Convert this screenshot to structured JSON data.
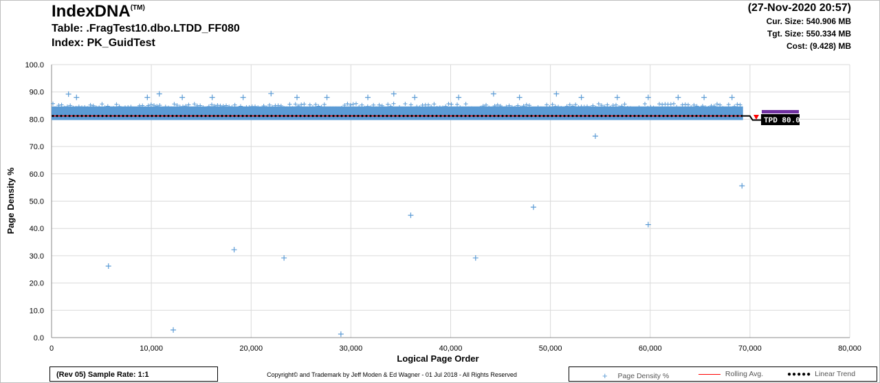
{
  "header": {
    "brand": "IndexDNA",
    "brand_mark": "(TM)",
    "table_line": "Table: .FragTest10.dbo.LTDD_FF080",
    "index_line": "Index: PK_GuidTest",
    "timestamp": "(27-Nov-2020 20:57)",
    "cur_size": "Cur. Size: 540.906  MB",
    "tgt_size": "Tgt. Size: 550.334  MB",
    "cost": "Cost: (9.428)  MB"
  },
  "footer": {
    "rev_text": "(Rev 05) Sample Rate: 1:1",
    "copyright": "Copyright© and Trademark by Jeff Moden & Ed Wagner - 01 Jul 2018 - All Rights Reserved"
  },
  "legend": {
    "page_density": "Page Density %",
    "rolling_avg": "Rolling Avg.",
    "linear_trend": "Linear Trend"
  },
  "tpd_label": "TPD 80.0",
  "colors": {
    "scatter": "#5b9bd5",
    "rolling": "#ff0000",
    "trend": "#000000",
    "tpd_bar": "#7030a0",
    "grid": "#d9d9d9"
  },
  "chart_data": {
    "type": "scatter",
    "xlabel": "Logical Page Order",
    "ylabel": "Page Density %",
    "xlim": [
      0,
      80000
    ],
    "ylim": [
      0,
      100
    ],
    "x_ticks": [
      "0",
      "10,000",
      "20,000",
      "30,000",
      "40,000",
      "50,000",
      "60,000",
      "70,000",
      "80,000"
    ],
    "y_ticks": [
      "0.0",
      "10.0",
      "20.0",
      "30.0",
      "40.0",
      "50.0",
      "60.0",
      "70.0",
      "80.0",
      "90.0",
      "100.0"
    ],
    "grid": true,
    "legend_position": "bottom-right",
    "series": [
      {
        "name": "Page Density %",
        "dense_band": {
          "x_range": [
            0,
            69300
          ],
          "y_range": [
            79.7,
            86.2
          ]
        },
        "high_points": [
          [
            1700,
            89.2
          ],
          [
            10800,
            89.3
          ],
          [
            22000,
            89.4
          ],
          [
            34300,
            89.3
          ],
          [
            44300,
            89.3
          ],
          [
            50600,
            89.3
          ],
          [
            2500,
            88.0
          ],
          [
            9600,
            88.0
          ],
          [
            13100,
            88.0
          ],
          [
            16100,
            88.0
          ],
          [
            19200,
            88.0
          ],
          [
            24600,
            88.0
          ],
          [
            27600,
            88.0
          ],
          [
            31700,
            88.0
          ],
          [
            36400,
            88.0
          ],
          [
            40800,
            88.0
          ],
          [
            46900,
            88.0
          ],
          [
            53100,
            88.0
          ],
          [
            56700,
            88.0
          ],
          [
            59800,
            88.0
          ],
          [
            62800,
            88.0
          ],
          [
            65400,
            88.0
          ],
          [
            68200,
            88.0
          ]
        ],
        "outliers": [
          [
            5700,
            26.2
          ],
          [
            12200,
            2.8
          ],
          [
            18300,
            32.2
          ],
          [
            23300,
            29.2
          ],
          [
            29000,
            1.3
          ],
          [
            36000,
            44.8
          ],
          [
            42500,
            29.2
          ],
          [
            48300,
            47.8
          ],
          [
            54500,
            73.8
          ],
          [
            59800,
            41.4
          ],
          [
            69200,
            55.6
          ]
        ]
      },
      {
        "name": "Rolling Avg.",
        "y": 81.2,
        "x_range": [
          0,
          69300
        ]
      },
      {
        "name": "Linear Trend",
        "y": 81.2,
        "x_range": [
          0,
          69300
        ]
      }
    ],
    "tpd_value": 80.0
  }
}
